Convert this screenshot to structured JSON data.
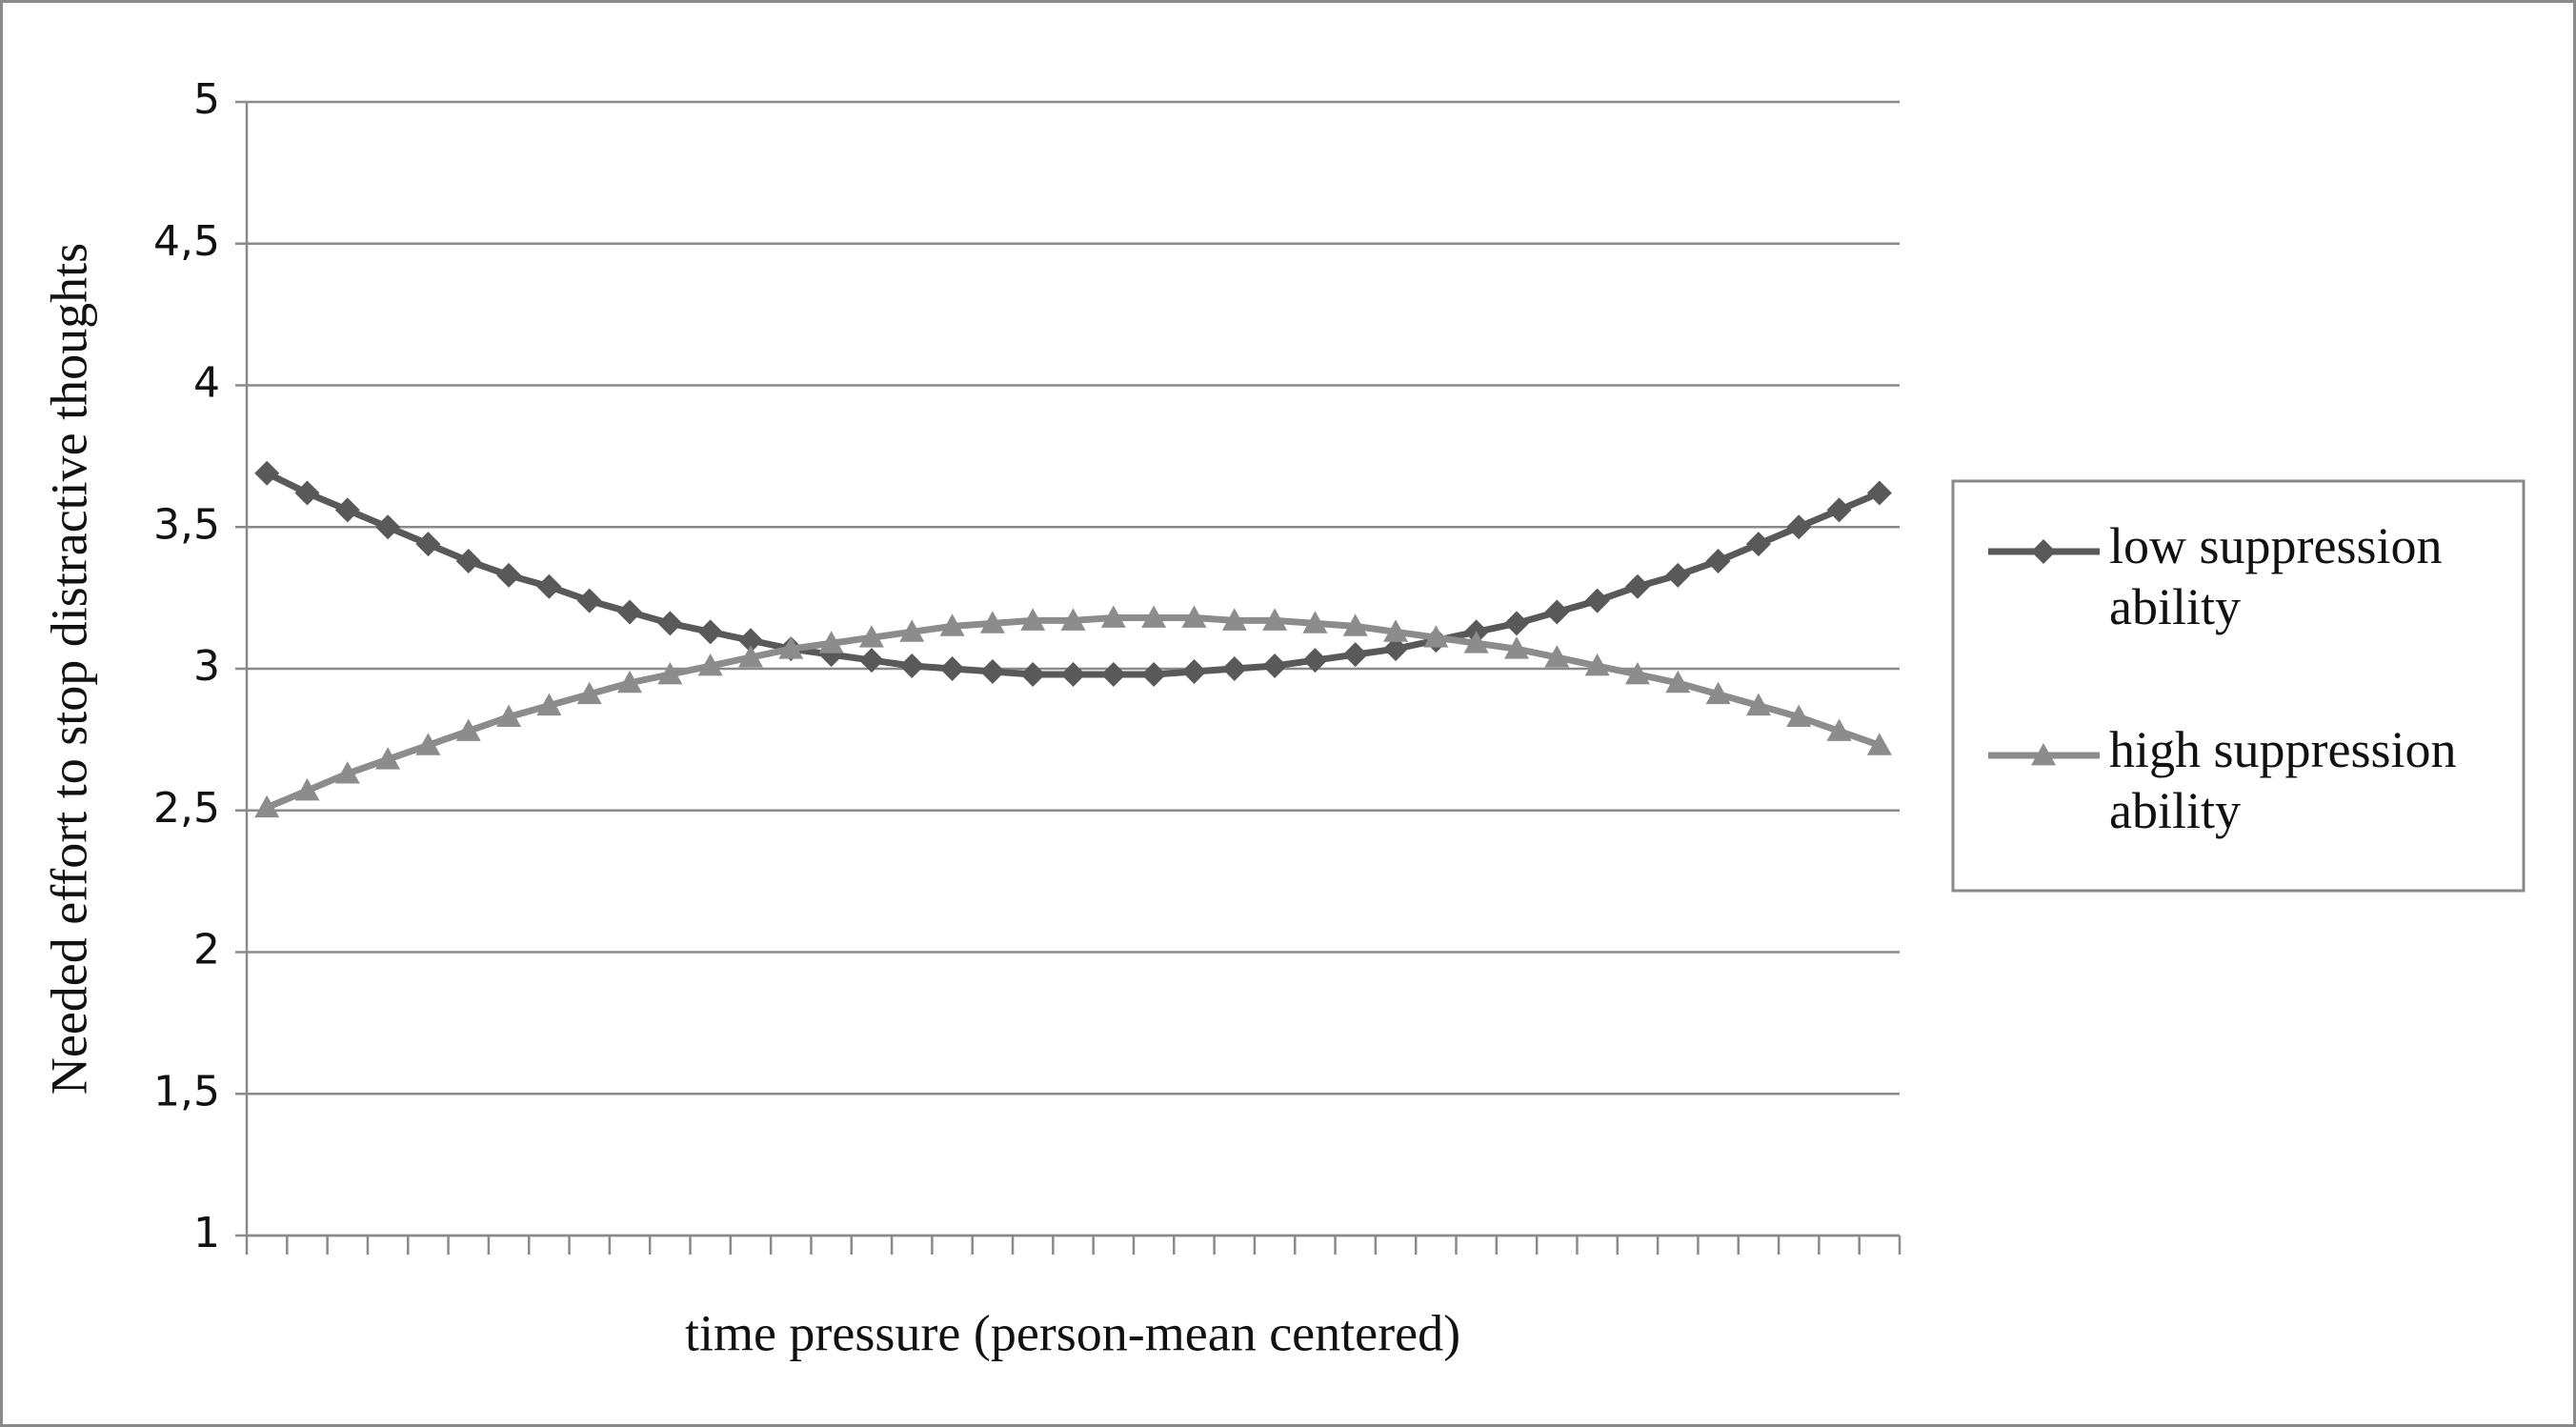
{
  "chart_data": {
    "type": "line",
    "xlabel": "time pressure (person-mean centered)",
    "ylabel": "Needed effort to stop distractive thoughts",
    "categories": [
      null,
      null,
      null,
      null,
      null,
      null,
      null,
      null,
      null,
      null,
      null,
      null,
      null,
      null,
      null,
      null,
      null,
      null,
      null,
      null,
      null,
      null,
      null,
      null,
      null,
      null,
      null,
      null,
      null,
      null,
      null,
      null,
      null,
      null,
      null,
      null,
      null,
      null,
      null,
      null,
      null
    ],
    "series": [
      {
        "name": "low suppression ability",
        "color": "#595959",
        "marker": "diamond",
        "values": [
          3.69,
          3.62,
          3.56,
          3.5,
          3.44,
          3.38,
          3.33,
          3.29,
          3.24,
          3.2,
          3.16,
          3.13,
          3.1,
          3.07,
          3.05,
          3.03,
          3.01,
          3.0,
          2.99,
          2.98,
          2.98,
          2.98,
          2.98,
          2.99,
          3.0,
          3.01,
          3.03,
          3.05,
          3.07,
          3.1,
          3.13,
          3.16,
          3.2,
          3.24,
          3.29,
          3.33,
          3.38,
          3.44,
          3.5,
          3.56,
          3.62
        ]
      },
      {
        "name": "high suppression ability",
        "color": "#8c8c8c",
        "marker": "triangle",
        "values": [
          2.51,
          2.57,
          2.63,
          2.68,
          2.73,
          2.78,
          2.83,
          2.87,
          2.91,
          2.95,
          2.98,
          3.01,
          3.04,
          3.07,
          3.09,
          3.11,
          3.13,
          3.15,
          3.16,
          3.17,
          3.17,
          3.18,
          3.18,
          3.18,
          3.17,
          3.17,
          3.16,
          3.15,
          3.13,
          3.11,
          3.09,
          3.07,
          3.04,
          3.01,
          2.98,
          2.95,
          2.91,
          2.87,
          2.83,
          2.78,
          2.73
        ]
      }
    ],
    "ylim": [
      1,
      5
    ],
    "yticks": [
      1,
      {
        "value": 1.5,
        "label": "1,5"
      },
      2,
      {
        "value": 2.5,
        "label": "2,5"
      },
      3,
      {
        "value": 3.5,
        "label": "3,5"
      },
      4,
      {
        "value": 4.5,
        "label": "4,5"
      },
      5
    ],
    "grid": true,
    "legend": "right"
  }
}
